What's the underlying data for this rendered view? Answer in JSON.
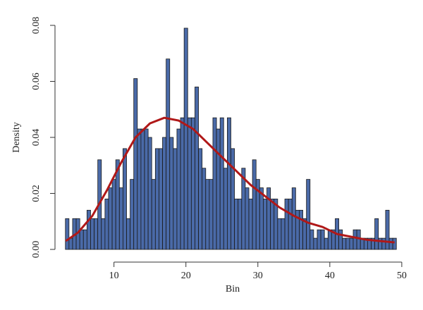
{
  "chart_data": {
    "type": "histogram",
    "x_label": "Bin",
    "y_label": "Density",
    "bins": [
      3.25,
      3.75,
      4.25,
      4.75,
      5.25,
      5.75,
      6.25,
      6.75,
      7.25,
      7.75,
      8.25,
      8.75,
      9.25,
      9.75,
      10.25,
      10.75,
      11.25,
      11.75,
      12.25,
      12.75,
      13.25,
      13.75,
      14.25,
      14.75,
      15.25,
      15.75,
      16.25,
      16.75,
      17.25,
      17.75,
      18.25,
      18.75,
      19.25,
      19.75,
      20.25,
      20.75,
      21.25,
      21.75,
      22.25,
      22.75,
      23.25,
      23.75,
      24.25,
      24.75,
      25.25,
      25.75,
      26.25,
      26.75,
      27.25,
      27.75,
      28.25,
      28.75,
      29.25,
      29.75,
      30.25,
      30.75,
      31.25,
      31.75,
      32.25,
      32.75,
      33.25,
      33.75,
      34.25,
      34.75,
      35.25,
      35.75,
      36.25,
      36.75,
      37.25,
      37.75,
      38.25,
      38.75,
      39.25,
      39.75,
      40.25,
      40.75,
      41.25,
      41.75,
      42.25,
      42.75,
      43.25,
      43.75,
      44.25,
      44.75,
      45.25,
      45.75,
      46.25,
      46.75,
      47.25,
      47.75,
      48.25,
      48.75,
      49.25
    ],
    "values": [
      0.011,
      0.004,
      0.011,
      0.011,
      0.007,
      0.007,
      0.014,
      0.011,
      0.011,
      0.032,
      0.011,
      0.018,
      0.022,
      0.025,
      0.032,
      0.022,
      0.036,
      0.011,
      0.025,
      0.061,
      0.043,
      0.043,
      0.043,
      0.04,
      0.025,
      0.036,
      0.036,
      0.04,
      0.068,
      0.04,
      0.036,
      0.043,
      0.047,
      0.079,
      0.047,
      0.047,
      0.058,
      0.036,
      0.029,
      0.025,
      0.025,
      0.047,
      0.043,
      0.047,
      0.029,
      0.047,
      0.036,
      0.018,
      0.018,
      0.029,
      0.022,
      0.018,
      0.032,
      0.025,
      0.022,
      0.018,
      0.022,
      0.018,
      0.018,
      0.011,
      0.011,
      0.018,
      0.018,
      0.022,
      0.014,
      0.014,
      0.011,
      0.025,
      0.007,
      0.004,
      0.007,
      0.007,
      0.004,
      0.007,
      0.007,
      0.011,
      0.007,
      0.004,
      0.004,
      0.004,
      0.007,
      0.007,
      0.004,
      0.004,
      0.004,
      0.004,
      0.011,
      0.004,
      0.004,
      0.014,
      0.004,
      0.004
    ],
    "color": "#4a6aa8",
    "curve": {
      "color": "#b01818",
      "x": [
        3.3,
        5,
        7,
        9,
        11,
        13,
        15,
        17,
        19,
        21,
        23,
        25,
        27,
        29,
        31,
        33,
        35,
        37,
        39,
        41,
        43,
        45,
        47,
        49
      ],
      "y": [
        0.003,
        0.006,
        0.012,
        0.021,
        0.031,
        0.04,
        0.045,
        0.047,
        0.046,
        0.043,
        0.038,
        0.033,
        0.028,
        0.023,
        0.019,
        0.015,
        0.012,
        0.0095,
        0.008,
        0.0055,
        0.0045,
        0.0035,
        0.003,
        0.0025
      ]
    },
    "xlim": [
      2,
      50.5
    ],
    "xticks": [
      10,
      20,
      30,
      40,
      50
    ],
    "ylim": [
      0,
      0.08
    ],
    "yticks": [
      {
        "value": 0,
        "label": "0.00"
      },
      {
        "value": 0.02,
        "label": "0.02"
      },
      {
        "value": 0.04,
        "label": "0.04"
      },
      {
        "value": 0.06,
        "label": "0.06"
      },
      {
        "value": 0.08,
        "label": "0.08"
      }
    ],
    "grid": false
  }
}
